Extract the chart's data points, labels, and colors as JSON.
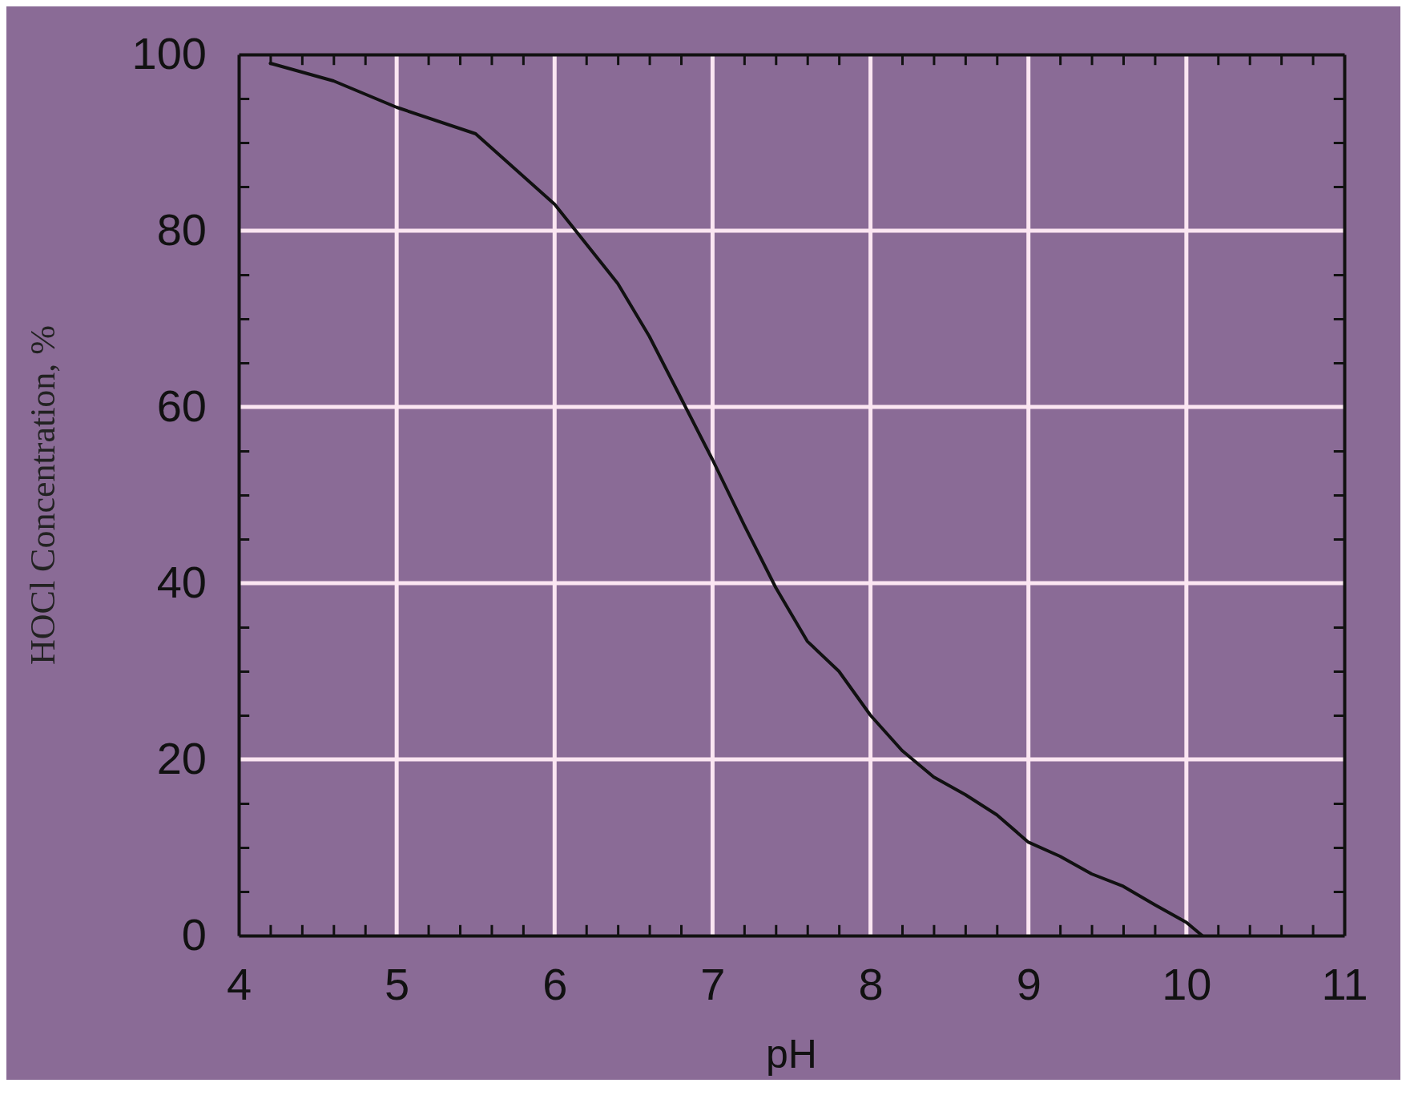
{
  "chart_data": {
    "type": "line",
    "xlabel": "pH",
    "ylabel": "HOCl Concentration, %",
    "x": [
      4.2,
      4.6,
      5.0,
      5.5,
      6.0,
      6.2,
      6.4,
      6.6,
      6.8,
      7.0,
      7.2,
      7.4,
      7.6,
      7.8,
      8.0,
      8.2,
      8.4,
      8.6,
      8.8,
      9.0,
      9.2,
      9.4,
      9.6,
      9.8,
      10.0,
      10.1
    ],
    "series": [
      {
        "color": "#111111",
        "values": [
          99,
          97,
          94,
          91,
          83,
          78.5,
          74,
          68,
          61,
          54,
          46.6,
          39.5,
          33.4,
          30,
          25,
          21,
          18,
          16,
          13.7,
          10.6,
          9,
          7,
          5.6,
          3.5,
          1.5,
          0
        ]
      }
    ],
    "xlim": [
      4,
      11
    ],
    "xticks": [
      4,
      {
        "value": 4.2,
        "label": null
      },
      {
        "value": 4.4,
        "label": null
      },
      {
        "value": 4.6,
        "label": null
      },
      {
        "value": 4.8,
        "label": null
      },
      5,
      {
        "value": 5.2,
        "label": null
      },
      {
        "value": 5.4,
        "label": null
      },
      {
        "value": 5.6,
        "label": null
      },
      {
        "value": 5.8,
        "label": null
      },
      6,
      {
        "value": 6.2,
        "label": null
      },
      {
        "value": 6.4,
        "label": null
      },
      {
        "value": 6.6,
        "label": null
      },
      {
        "value": 6.8,
        "label": null
      },
      7,
      {
        "value": 7.2,
        "label": null
      },
      {
        "value": 7.4,
        "label": null
      },
      {
        "value": 7.6,
        "label": null
      },
      {
        "value": 7.8,
        "label": null
      },
      8,
      {
        "value": 8.2,
        "label": null
      },
      {
        "value": 8.4,
        "label": null
      },
      {
        "value": 8.6,
        "label": null
      },
      {
        "value": 8.8,
        "label": null
      },
      9,
      {
        "value": 9.2,
        "label": null
      },
      {
        "value": 9.4,
        "label": null
      },
      {
        "value": 9.6,
        "label": null
      },
      {
        "value": 9.8,
        "label": null
      },
      10,
      {
        "value": 10.2,
        "label": null
      },
      {
        "value": 10.4,
        "label": null
      },
      {
        "value": 10.6,
        "label": null
      },
      {
        "value": 10.8,
        "label": null
      },
      11
    ],
    "ylim": [
      0,
      100
    ],
    "yticks": [
      0,
      {
        "value": 5,
        "label": null
      },
      {
        "value": 10,
        "label": null
      },
      {
        "value": 15,
        "label": null
      },
      20,
      {
        "value": 25,
        "label": null
      },
      {
        "value": 30,
        "label": null
      },
      {
        "value": 35,
        "label": null
      },
      40,
      {
        "value": 45,
        "label": null
      },
      {
        "value": 50,
        "label": null
      },
      {
        "value": 55,
        "label": null
      },
      60,
      {
        "value": 65,
        "label": null
      },
      {
        "value": 70,
        "label": null
      },
      {
        "value": 75,
        "label": null
      },
      80,
      {
        "value": 85,
        "label": null
      },
      {
        "value": 90,
        "label": null
      },
      {
        "value": 95,
        "label": null
      },
      100
    ],
    "grid": true,
    "marker": "none",
    "line_style": "solid"
  }
}
